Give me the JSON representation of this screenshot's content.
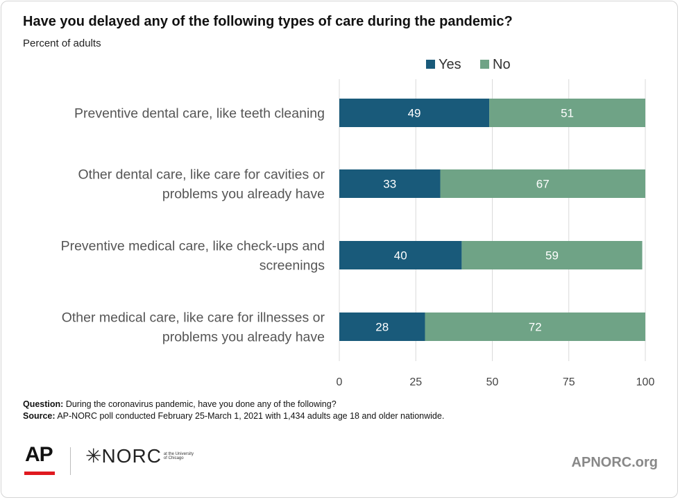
{
  "header": {
    "title": "Have you delayed any of the following types of care during the pandemic?",
    "subtitle": "Percent of adults"
  },
  "chart_data": {
    "type": "bar",
    "orientation": "horizontal",
    "stacked": true,
    "categories": [
      [
        "Preventive dental care, like teeth cleaning"
      ],
      [
        "Other dental care, like care for cavities or",
        "problems you already have"
      ],
      [
        "Preventive medical care, like check-ups and",
        "screenings"
      ],
      [
        "Other medical care, like care for illnesses or",
        "problems you already have"
      ]
    ],
    "series": [
      {
        "name": "Yes",
        "color": "#195a7a",
        "values": [
          49,
          33,
          40,
          28
        ]
      },
      {
        "name": "No",
        "color": "#6fa386",
        "values": [
          51,
          67,
          59,
          72
        ]
      }
    ],
    "xlim": [
      0,
      100
    ],
    "xticks": [
      "0",
      "25",
      "50",
      "75",
      "100"
    ],
    "grid": true,
    "legend": "top-right"
  },
  "notes": {
    "question_label": "Question:",
    "question_text": " During the coronavirus pandemic, have you done any of the following?",
    "source_label": "Source:",
    "source_text": " AP-NORC poll conducted February 25-March 1, 2021 with 1,434 adults age 18 and older nationwide."
  },
  "footer": {
    "ap_logo": "AP",
    "norc_logo": "NORC",
    "norc_small": "at the University of Chicago",
    "site": "APNORC.org"
  }
}
